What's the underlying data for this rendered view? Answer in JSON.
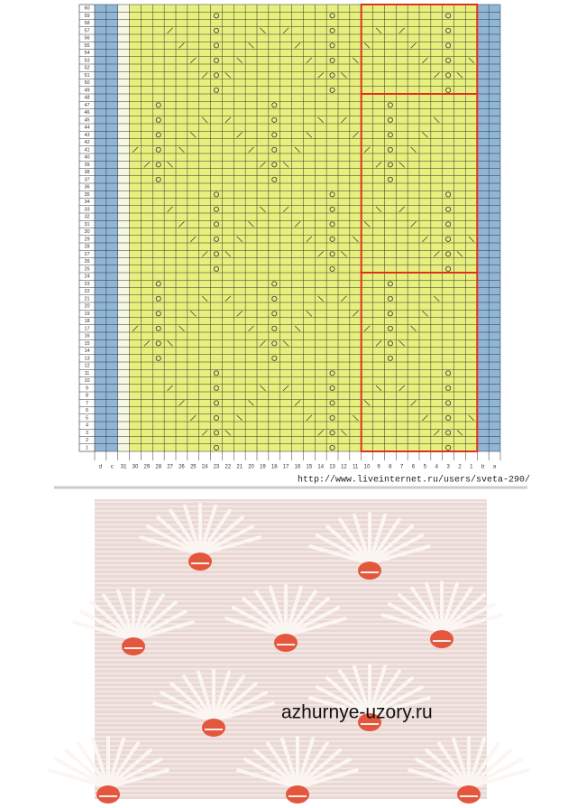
{
  "chart": {
    "row_numbers": [
      1,
      2,
      3,
      4,
      5,
      6,
      7,
      8,
      9,
      10,
      11,
      12,
      13,
      14,
      15,
      16,
      17,
      18,
      19,
      20,
      21,
      22,
      23,
      24,
      25,
      26,
      27,
      28,
      29,
      30,
      31,
      32,
      33,
      34,
      35,
      36,
      37,
      38,
      39,
      40,
      41,
      42,
      43,
      44,
      45,
      46,
      47,
      48,
      49,
      50,
      51,
      52,
      53,
      54,
      55,
      56,
      57,
      58,
      59,
      60
    ],
    "column_labels": [
      "d",
      "c",
      "31",
      "30",
      "29",
      "28",
      "27",
      "26",
      "25",
      "24",
      "23",
      "22",
      "21",
      "20",
      "19",
      "18",
      "17",
      "16",
      "15",
      "14",
      "13",
      "12",
      "11",
      "10",
      "9",
      "8",
      "7",
      "6",
      "5",
      "4",
      "3",
      "2",
      "1",
      "b",
      "a"
    ],
    "source_url": "http://www.liveinternet.ru/users/sveta-290/"
  },
  "photo": {
    "watermark": "azhurnye-uzory.ru"
  }
}
